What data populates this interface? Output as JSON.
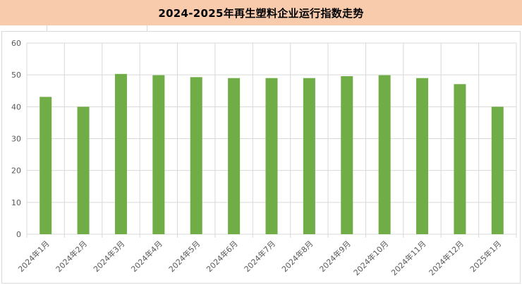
{
  "title": "2024-2025年再生塑料企业运行指数走势",
  "colors": {
    "bar": "#70ad47",
    "title_bg": "#f8cbad",
    "grid": "#d9d9d9",
    "axis_text": "#595959"
  },
  "chart_data": {
    "type": "bar",
    "title": "2024-2025年再生塑料企业运行指数走势",
    "categories": [
      "2024年1月",
      "2024年2月",
      "2024年3月",
      "2024年4月",
      "2024年5月",
      "2024年6月",
      "2024年7月",
      "2024年8月",
      "2024年9月",
      "2024年10月",
      "2024年11月",
      "2024年12月",
      "2025年1月"
    ],
    "values": [
      43.1,
      40.0,
      50.3,
      49.9,
      49.3,
      49.0,
      49.0,
      49.0,
      49.6,
      49.9,
      49.0,
      47.1,
      40.0
    ],
    "ylim": [
      0,
      60
    ],
    "yticks": [
      0,
      10,
      20,
      30,
      40,
      50,
      60
    ],
    "grid": true,
    "legend": "none",
    "xlabel": "",
    "ylabel": ""
  }
}
